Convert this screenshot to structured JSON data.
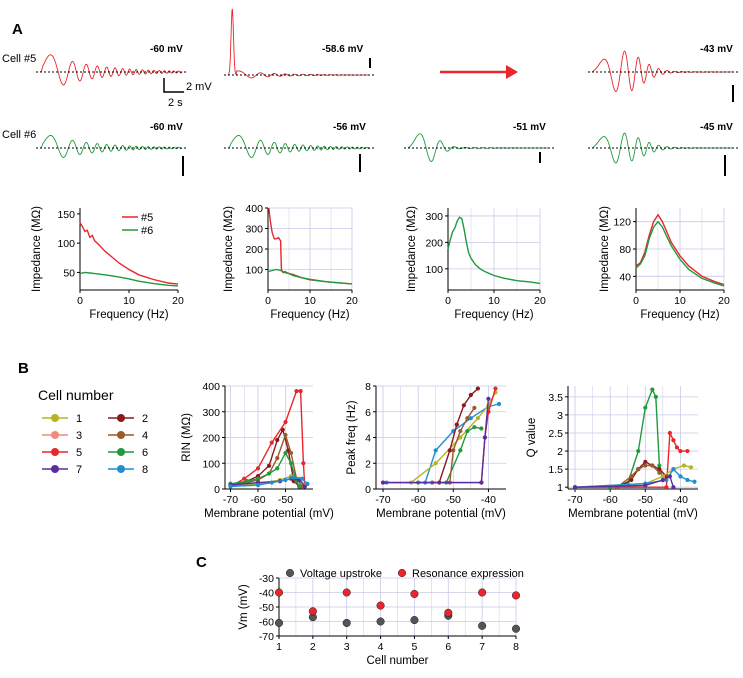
{
  "colors": {
    "red": "#e8262b",
    "green": "#1f9a3e",
    "grid": "#c9c9e8",
    "gray": "#555555"
  },
  "panels": {
    "a": "A",
    "b": "B",
    "c": "C"
  },
  "traces": {
    "row_labels": [
      "Cell #5",
      "Cell #6"
    ],
    "cell5_voltages": [
      "-60 mV",
      "-58.6 mV",
      "",
      "-43 mV"
    ],
    "cell6_voltages": [
      "-60 mV",
      "-56 mV",
      "-51 mV",
      "-45 mV"
    ],
    "scale_time": "2 s",
    "scale_voltage": "2 mV"
  },
  "chart_data": [
    {
      "id": "imp1",
      "type": "line",
      "title": "",
      "xlabel": "Frequency (Hz)",
      "ylabel": "Impedance (MΩ)",
      "xlim": [
        0,
        20
      ],
      "ylim": [
        20,
        160
      ],
      "xticks": [
        0,
        10,
        20
      ],
      "yticks": [
        50,
        100,
        150
      ],
      "legend": [
        "#5",
        "#6"
      ],
      "series": [
        {
          "name": "#5",
          "color": "red",
          "x": [
            0,
            0.5,
            1,
            1.5,
            2,
            2.5,
            3,
            3.5,
            4,
            5,
            6,
            8,
            10,
            12,
            15,
            18,
            20
          ],
          "y": [
            135,
            128,
            120,
            122,
            110,
            113,
            104,
            100,
            96,
            87,
            80,
            66,
            55,
            46,
            38,
            32,
            30
          ]
        },
        {
          "name": "#6",
          "color": "green",
          "x": [
            0,
            1,
            2,
            3,
            4,
            5,
            6,
            8,
            10,
            12,
            15,
            18,
            20
          ],
          "y": [
            48,
            50,
            49,
            48,
            47,
            46,
            45,
            42,
            39,
            35,
            31,
            28,
            27
          ]
        }
      ]
    },
    {
      "id": "imp2",
      "type": "line",
      "xlabel": "Frequency (Hz)",
      "ylabel": "Impedance (MΩ)",
      "xlim": [
        0,
        20
      ],
      "ylim": [
        0,
        400
      ],
      "xticks": [
        0,
        10,
        20
      ],
      "yticks": [
        100,
        200,
        300,
        400
      ],
      "series": [
        {
          "name": "#5",
          "color": "red",
          "x": [
            0.2,
            0.6,
            1,
            1.5,
            2,
            2.5,
            3,
            3.2,
            3.6,
            4,
            5,
            6,
            8,
            10,
            14,
            20
          ],
          "y": [
            400,
            330,
            280,
            250,
            250,
            255,
            240,
            100,
            85,
            90,
            80,
            75,
            60,
            50,
            40,
            30
          ]
        },
        {
          "name": "#6",
          "color": "green",
          "x": [
            0,
            1,
            2,
            3,
            4,
            5,
            6,
            8,
            10,
            14,
            20
          ],
          "y": [
            90,
            95,
            100,
            95,
            85,
            80,
            70,
            60,
            52,
            40,
            30
          ]
        }
      ]
    },
    {
      "id": "imp3",
      "type": "line",
      "xlabel": "Frequency (Hz)",
      "ylabel": "Impedance (MΩ)",
      "xlim": [
        0,
        20
      ],
      "ylim": [
        20,
        330
      ],
      "xticks": [
        0,
        10,
        20
      ],
      "yticks": [
        100,
        200,
        300
      ],
      "series": [
        {
          "name": "#6",
          "color": "green",
          "x": [
            0,
            0.5,
            1,
            1.5,
            2,
            2.5,
            3,
            3.5,
            4,
            4.5,
            5,
            6,
            7,
            8,
            10,
            12,
            15,
            18,
            20
          ],
          "y": [
            175,
            210,
            240,
            255,
            280,
            295,
            290,
            250,
            200,
            160,
            140,
            115,
            100,
            90,
            75,
            65,
            55,
            50,
            45
          ]
        }
      ]
    },
    {
      "id": "imp4",
      "type": "line",
      "xlabel": "Frequency (Hz)",
      "ylabel": "Impedance (MΩ)",
      "xlim": [
        0,
        20
      ],
      "ylim": [
        20,
        140
      ],
      "xticks": [
        0,
        10,
        20
      ],
      "yticks": [
        40,
        80,
        120
      ],
      "series": [
        {
          "name": "#5",
          "color": "red",
          "x": [
            0,
            1,
            2,
            3,
            4,
            5,
            6,
            7,
            8,
            10,
            12,
            15,
            18,
            20
          ],
          "y": [
            55,
            60,
            75,
            100,
            120,
            130,
            120,
            105,
            90,
            70,
            55,
            40,
            32,
            28
          ]
        },
        {
          "name": "#6",
          "color": "green",
          "x": [
            0,
            1,
            2,
            3,
            4,
            5,
            6,
            7,
            8,
            10,
            12,
            15,
            18,
            20
          ],
          "y": [
            52,
            58,
            70,
            95,
            112,
            120,
            112,
            98,
            85,
            65,
            50,
            37,
            30,
            26
          ]
        }
      ]
    },
    {
      "id": "rin",
      "type": "line",
      "xlabel": "Membrane potential (mV)",
      "ylabel": "RIN (MΩ)",
      "xlim": [
        -72,
        -40
      ],
      "ylim": [
        0,
        400
      ],
      "xticks": [
        -70,
        -60,
        -50
      ],
      "yticks": [
        0,
        100,
        200,
        300,
        400
      ],
      "series": [
        {
          "name": "2",
          "color": "#8b1a1a",
          "x": [
            -70,
            -64,
            -60,
            -56,
            -53,
            -51,
            -49,
            -47,
            -45
          ],
          "y": [
            20,
            30,
            50,
            90,
            190,
            230,
            150,
            30,
            10
          ]
        },
        {
          "name": "4",
          "color": "#9a5a2a",
          "x": [
            -70,
            -64,
            -60,
            -56,
            -53,
            -50,
            -48,
            -46,
            -44
          ],
          "y": [
            15,
            25,
            35,
            60,
            120,
            210,
            140,
            40,
            10
          ]
        },
        {
          "name": "5",
          "color": "#e8262b",
          "x": [
            -70,
            -65,
            -60,
            -55,
            -50,
            -46,
            -44.5,
            -43.5,
            -43
          ],
          "y": [
            10,
            40,
            80,
            180,
            260,
            380,
            380,
            100,
            10
          ]
        },
        {
          "name": "6",
          "color": "#1f9a3e",
          "x": [
            -70,
            -64,
            -60,
            -56,
            -53,
            -50,
            -48,
            -46,
            -45
          ],
          "y": [
            20,
            30,
            40,
            60,
            80,
            140,
            100,
            30,
            10
          ]
        },
        {
          "name": "1",
          "color": "#b5b520",
          "x": [
            -70,
            -60,
            -52,
            -48,
            -45,
            -43
          ],
          "y": [
            10,
            20,
            35,
            50,
            40,
            15
          ]
        },
        {
          "name": "7",
          "color": "#5b2d9e",
          "x": [
            -70,
            -60,
            -52,
            -48,
            -45,
            -43
          ],
          "y": [
            15,
            25,
            30,
            40,
            35,
            10
          ]
        },
        {
          "name": "8",
          "color": "#1f8fd0",
          "x": [
            -70,
            -60,
            -55,
            -50,
            -47,
            -44,
            -42
          ],
          "y": [
            10,
            15,
            25,
            35,
            45,
            40,
            20
          ]
        }
      ]
    },
    {
      "id": "peak",
      "type": "line",
      "xlabel": "Membrane potential (mV)",
      "ylabel": "Peak freq (Hz)",
      "xlim": [
        -72,
        -35
      ],
      "ylim": [
        0,
        8
      ],
      "xticks": [
        -70,
        -60,
        -50,
        -40
      ],
      "yticks": [
        0,
        2,
        4,
        6,
        8
      ],
      "series": [
        {
          "name": "8",
          "color": "#1f8fd0",
          "x": [
            -69,
            -58,
            -55,
            -50,
            -45,
            -40,
            -37
          ],
          "y": [
            0.5,
            0.5,
            3,
            4.5,
            5.5,
            6.4,
            6.6
          ]
        },
        {
          "name": "1",
          "color": "#b5b520",
          "x": [
            -62,
            -55,
            -48,
            -43,
            -40,
            -38
          ],
          "y": [
            0.5,
            2,
            4,
            5.5,
            6.5,
            7.5
          ]
        },
        {
          "name": "6",
          "color": "#1f9a3e",
          "x": [
            -60,
            -52,
            -48,
            -46,
            -44,
            -42
          ],
          "y": [
            0.5,
            0.5,
            3,
            4.5,
            4.8,
            4.7
          ]
        },
        {
          "name": "2",
          "color": "#8b1a1a",
          "x": [
            -54,
            -51,
            -49,
            -47,
            -45,
            -43
          ],
          "y": [
            0.5,
            3,
            5,
            6.5,
            7.3,
            7.8
          ]
        },
        {
          "name": "4",
          "color": "#9a5a2a",
          "x": [
            -56,
            -51,
            -50,
            -48,
            -46,
            -44
          ],
          "y": [
            0.5,
            0.5,
            3,
            4.5,
            5.5,
            6.3
          ]
        },
        {
          "name": "5",
          "color": "#e8262b",
          "x": [
            -70,
            -42,
            -41,
            -40,
            -38
          ],
          "y": [
            0.5,
            0.5,
            4,
            6,
            7.8
          ]
        },
        {
          "name": "7",
          "color": "#5b2d9e",
          "x": [
            -70,
            -42,
            -41,
            -40
          ],
          "y": [
            0.5,
            0.5,
            4,
            7
          ]
        }
      ]
    },
    {
      "id": "qval",
      "type": "line",
      "xlabel": "Membrane potential (mV)",
      "ylabel": "Q value",
      "xlim": [
        -72,
        -35
      ],
      "ylim": [
        0.95,
        3.8
      ],
      "xticks": [
        -70,
        -60,
        -50,
        -40
      ],
      "yticks": [
        1.0,
        1.5,
        2.0,
        2.5,
        3.0,
        3.5
      ],
      "series": [
        {
          "name": "6",
          "color": "#1f9a3e",
          "x": [
            -60,
            -55,
            -52,
            -50,
            -48,
            -47,
            -46,
            -45
          ],
          "y": [
            1.0,
            1.1,
            2.0,
            3.2,
            3.7,
            3.5,
            1.6,
            1.2
          ]
        },
        {
          "name": "2",
          "color": "#8b1a1a",
          "x": [
            -58,
            -54,
            -52,
            -50,
            -48,
            -46,
            -44
          ],
          "y": [
            1.0,
            1.2,
            1.5,
            1.7,
            1.6,
            1.5,
            1.3
          ]
        },
        {
          "name": "4",
          "color": "#9a5a2a",
          "x": [
            -58,
            -54,
            -52,
            -50,
            -48,
            -46
          ],
          "y": [
            1.0,
            1.3,
            1.5,
            1.6,
            1.6,
            1.4
          ]
        },
        {
          "name": "5",
          "color": "#e8262b",
          "x": [
            -70,
            -44,
            -43,
            -42,
            -41,
            -40,
            -38
          ],
          "y": [
            1.0,
            1.0,
            2.5,
            2.3,
            2.1,
            2.0,
            2.0
          ]
        },
        {
          "name": "1",
          "color": "#b5b520",
          "x": [
            -70,
            -50,
            -45,
            -42,
            -39,
            -37
          ],
          "y": [
            1.0,
            1.1,
            1.3,
            1.5,
            1.6,
            1.55
          ]
        },
        {
          "name": "8",
          "color": "#1f8fd0",
          "x": [
            -70,
            -50,
            -44,
            -42,
            -40,
            -38,
            -36
          ],
          "y": [
            1.0,
            1.1,
            1.2,
            1.5,
            1.3,
            1.2,
            1.15
          ]
        },
        {
          "name": "7",
          "color": "#5b2d9e",
          "x": [
            -70,
            -50,
            -45,
            -43,
            -42
          ],
          "y": [
            1.0,
            1.05,
            1.2,
            1.3,
            1.0
          ]
        }
      ]
    },
    {
      "id": "vm",
      "type": "scatter",
      "xlabel": "Cell number",
      "ylabel": "Vm (mV)",
      "xlim": [
        1,
        8
      ],
      "ylim": [
        -70,
        -30
      ],
      "xticks": [
        1,
        2,
        3,
        4,
        5,
        6,
        7,
        8
      ],
      "yticks": [
        -30,
        -40,
        -50,
        -60,
        -70
      ],
      "legend": [
        "Voltage upstroke",
        "Resonance expression"
      ],
      "series": [
        {
          "name": "Voltage upstroke",
          "color": "#555555",
          "x": [
            1,
            2,
            3,
            4,
            5,
            6,
            7,
            8
          ],
          "y": [
            -61,
            -57,
            -61,
            -60,
            -59,
            -56,
            -63,
            -65
          ]
        },
        {
          "name": "Resonance expression",
          "color": "#e8262b",
          "x": [
            1,
            2,
            3,
            4,
            5,
            6,
            7,
            8
          ],
          "y": [
            -40,
            -53,
            -40,
            -49,
            -41,
            -54,
            -40,
            -42
          ]
        }
      ]
    }
  ],
  "cell_legend": {
    "title": "Cell number",
    "items": [
      {
        "label": "1",
        "color": "#b5b520"
      },
      {
        "label": "2",
        "color": "#8b1a1a"
      },
      {
        "label": "3",
        "color": "#f08a80"
      },
      {
        "label": "4",
        "color": "#9a5a2a"
      },
      {
        "label": "5",
        "color": "#e8262b"
      },
      {
        "label": "6",
        "color": "#1f9a3e"
      },
      {
        "label": "7",
        "color": "#5b2d9e"
      },
      {
        "label": "8",
        "color": "#1f8fd0"
      }
    ]
  }
}
